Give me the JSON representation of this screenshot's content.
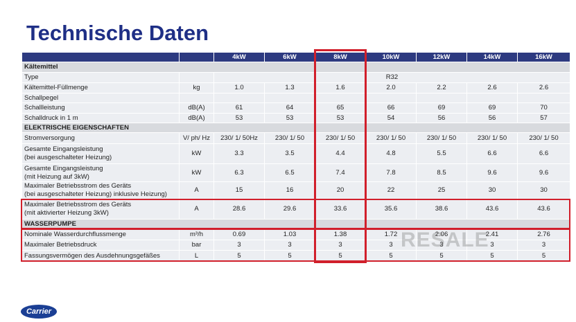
{
  "title": "Technische Daten",
  "table": {
    "header": [
      "4kW",
      "6kW",
      "8kW",
      "10kW",
      "12kW",
      "14kW",
      "16kW"
    ],
    "rows": [
      {
        "section": "Kältemittel"
      },
      {
        "label": "Type",
        "span": "R32"
      },
      {
        "label": "Kältemittel-Füllmenge",
        "unit": "kg",
        "values": [
          "1.0",
          "1.3",
          "1.6",
          "2.0",
          "2.2",
          "2.6",
          "2.6"
        ]
      },
      {
        "label": "Schallpegel"
      },
      {
        "label": "Schallleistung",
        "unit": "dB(A)",
        "values": [
          "61",
          "64",
          "65",
          "66",
          "69",
          "69",
          "70"
        ]
      },
      {
        "label": "Schalldruck in 1 m",
        "unit": "dB(A)",
        "values": [
          "53",
          "53",
          "53",
          "54",
          "56",
          "56",
          "57"
        ]
      },
      {
        "section": "ELEKTRISCHE EIGENSCHAFTEN"
      },
      {
        "label": "Stromversorgung",
        "unit": "V/ ph/ Hz",
        "values": [
          "230/ 1/ 50Hz",
          "230/ 1/ 50",
          "230/ 1/ 50",
          "230/ 1/ 50",
          "230/ 1/ 50",
          "230/ 1/ 50",
          "230/ 1/ 50"
        ]
      },
      {
        "label": "Gesamte Eingangsleistung\n(bei ausgeschalteter Heizung)",
        "unit": "kW",
        "values": [
          "3.3",
          "3.5",
          "4.4",
          "4.8",
          "5.5",
          "6.6",
          "6.6"
        ]
      },
      {
        "label": "Gesamte Eingangsleistung\n(mit Heizung auf 3kW)",
        "unit": "kW",
        "values": [
          "6.3",
          "6.5",
          "7.4",
          "7.8",
          "8.5",
          "9.6",
          "9.6"
        ]
      },
      {
        "label": "Maximaler Betriebsstrom des Geräts\n(bei ausgeschalteter Heizung) inklusive Heizung)",
        "unit": "A",
        "values": [
          "15",
          "16",
          "20",
          "22",
          "25",
          "30",
          "30"
        ]
      },
      {
        "label": "Maximaler Betriebsstrom des Geräts\n(mit aktivierter Heizung 3kW)",
        "unit": "A",
        "values": [
          "28.6",
          "29.6",
          "33.6",
          "35.6",
          "38.6",
          "43.6",
          "43.6"
        ]
      },
      {
        "section": "WASSERPUMPE"
      },
      {
        "label": "Nominale Wasserdurchflussmenge",
        "unit": "m³/h",
        "values": [
          "0.69",
          "1.03",
          "1.38",
          "1.72",
          "2.06",
          "2.41",
          "2.76"
        ]
      },
      {
        "label": "Maximaler Betriebsdruck",
        "unit": "bar",
        "values": [
          "3",
          "3",
          "3",
          "3",
          "3",
          "3",
          "3"
        ]
      },
      {
        "label": "Fassungsvermögen des Ausdehnungsgefäßes",
        "unit": "L",
        "values": [
          "5",
          "5",
          "5",
          "5",
          "5",
          "5",
          "5"
        ]
      }
    ]
  },
  "watermark": "RESALE",
  "logo": "Carrier"
}
